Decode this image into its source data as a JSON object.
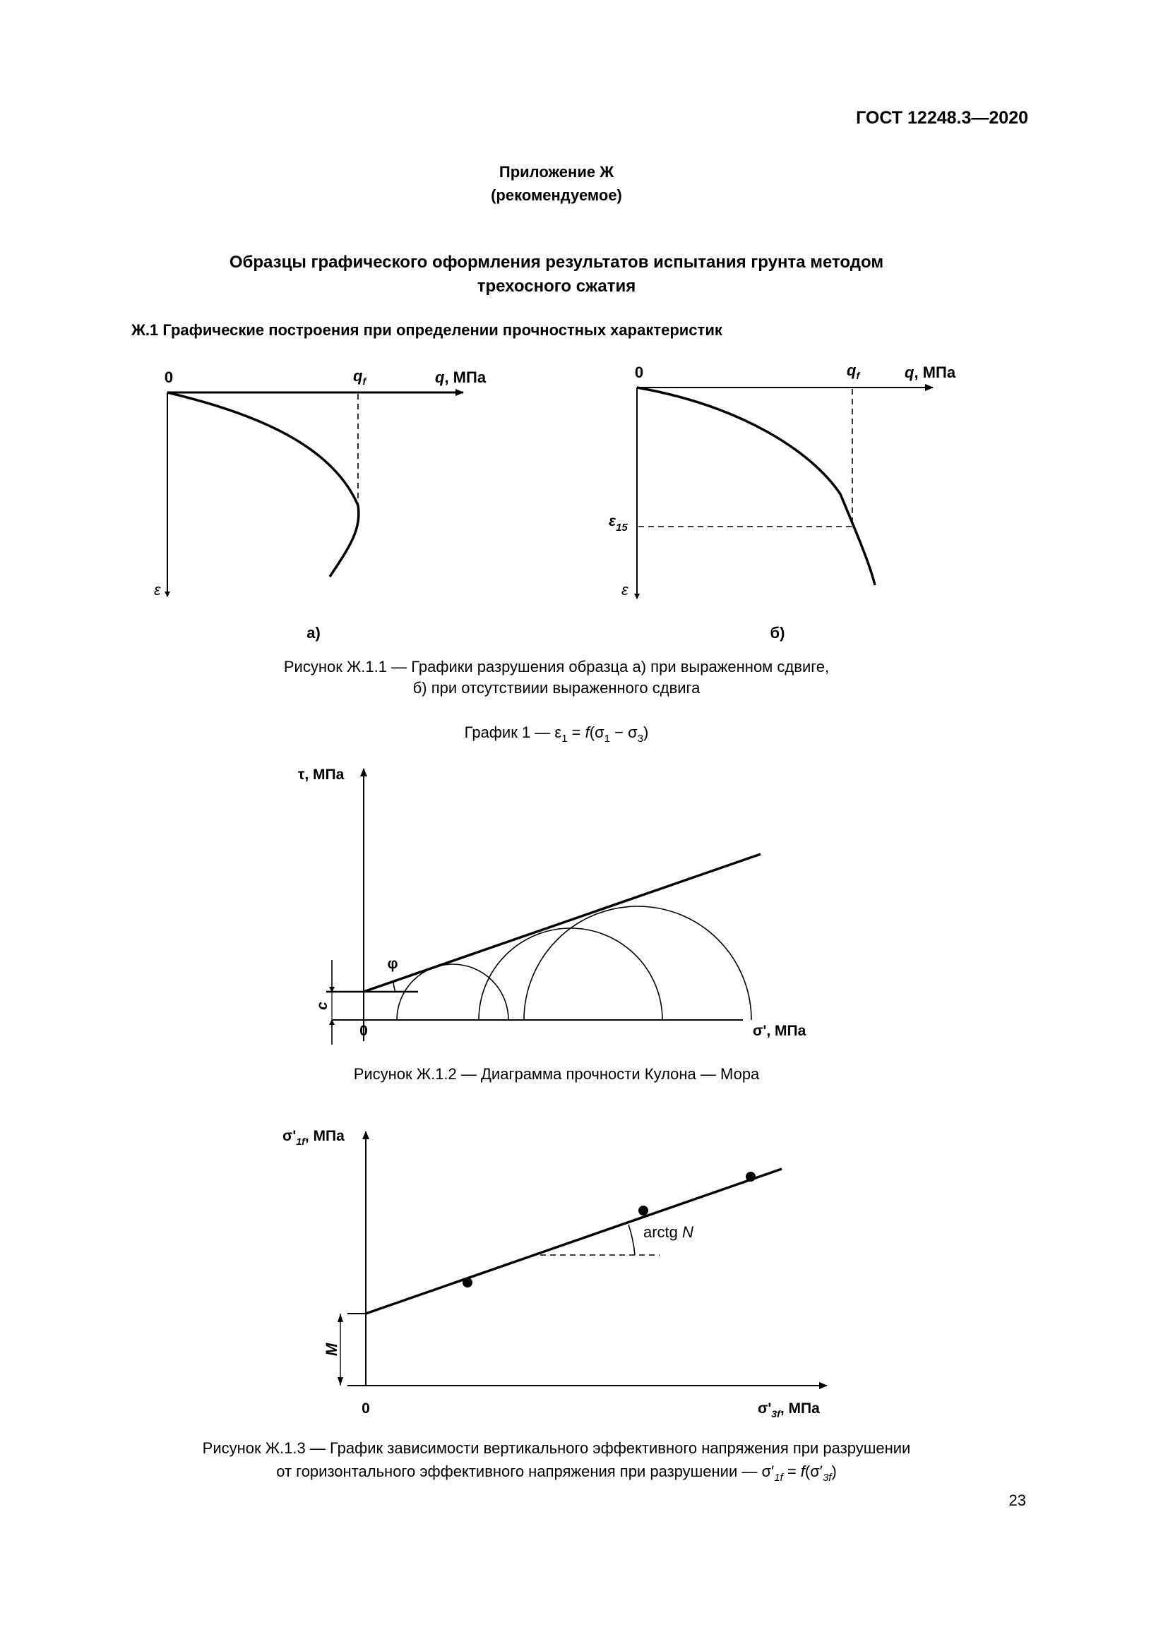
{
  "header": {
    "standard": "ГОСТ 12248.3—2020"
  },
  "appendix": {
    "title": "Приложение Ж",
    "status": "(рекомендуемое)"
  },
  "title": {
    "line1": "Образцы графического оформления результатов испытания грунта методом",
    "line2": "трехосного сжатия"
  },
  "section": {
    "heading": "Ж.1 Графические построения при определении прочностных характеристик"
  },
  "figure1": {
    "a": {
      "origin": "0",
      "qf": "q",
      "qf_sub": "f",
      "x_label_var": "q",
      "x_label_unit": ", МПа",
      "y_label": "ε",
      "panel": "а)"
    },
    "b": {
      "origin": "0",
      "qf": "q",
      "qf_sub": "f",
      "x_label_var": "q",
      "x_label_unit": ", МПа",
      "y_label": "ε",
      "eps15": "ε",
      "eps15_sub": "15",
      "panel": "б)"
    },
    "caption_line1": "Рисунок Ж.1.1 — Графики разрушения образца а) при выраженном сдвиге,",
    "caption_line2": "б) при отсутствиии выраженного сдвига",
    "graph_note": {
      "prefix": "График 1 — ε",
      "s1": "1",
      "eq": " = ",
      "f": "f",
      "open": "(σ",
      "s2": "1",
      "minus": " − σ",
      "s3": "3",
      "close": ")"
    }
  },
  "figure2": {
    "y_label": "τ, МПа",
    "x_label": "σ', МПа",
    "origin": "0",
    "angle": "φ",
    "intercept": "c",
    "caption": "Рисунок Ж.1.2 — Диаграмма прочности Кулона — Мора"
  },
  "figure3": {
    "y_label": {
      "sigma": "σ'",
      "sub": "1f",
      "unit": ", МПа"
    },
    "x_label": {
      "sigma": "σ'",
      "sub": "3f",
      "unit": ", МПа"
    },
    "origin": "0",
    "angle": {
      "text": "arctg ",
      "var": "N"
    },
    "intercept": "M",
    "caption_line1": "Рисунок Ж.1.3 — График зависимости вертикального эффективного напряжения при разрушении",
    "caption_line2": {
      "text": "от горизонтального эффективного напряжения при разрушении — σ′",
      "s1": "1f",
      "eq": " = ",
      "f": "f",
      "open": "(σ′",
      "s2": "3f",
      "close": ")"
    }
  },
  "footer": {
    "page_number": "23"
  }
}
